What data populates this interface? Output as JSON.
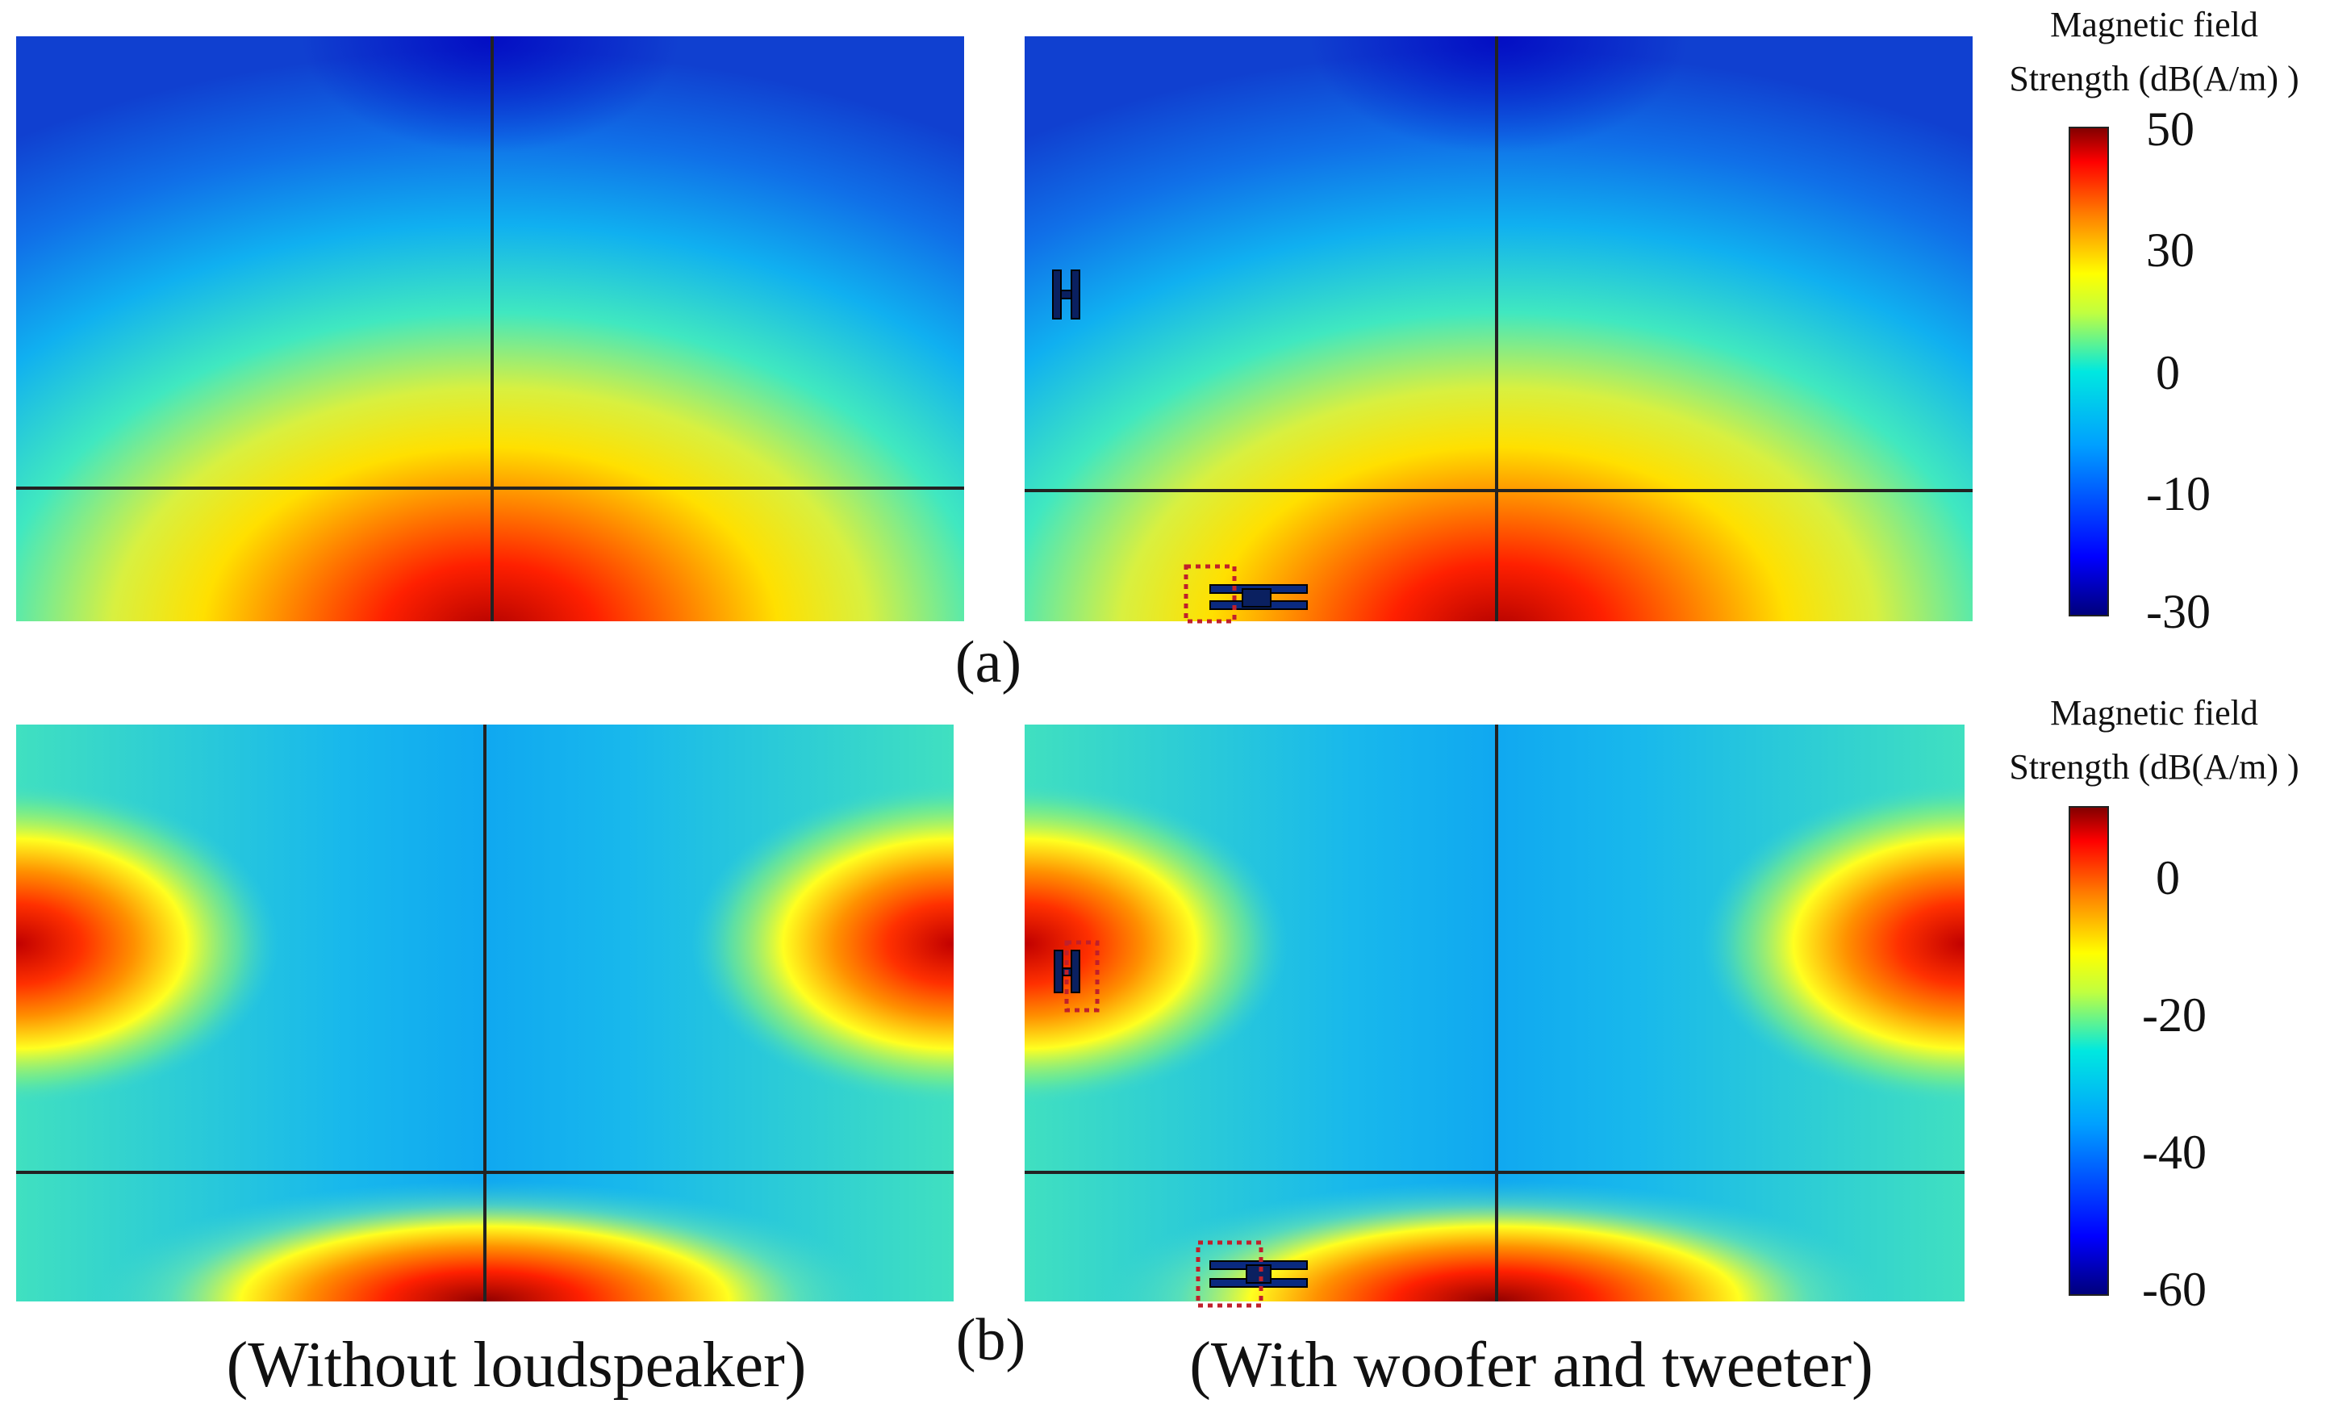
{
  "panels": {
    "a": {
      "label": "(a)",
      "colorbar": {
        "title_line1": "Magnetic  field",
        "title_line2": "Strength  (dB(A/m) )",
        "ticks": [
          "50",
          "30",
          "0",
          "-10",
          "-30"
        ]
      }
    },
    "b": {
      "label": "(b)",
      "colorbar": {
        "title_line1": "Magnetic  field",
        "title_line2": "Strength  (dB(A/m) )",
        "ticks": [
          "0",
          "-20",
          "-40",
          "-60"
        ]
      }
    }
  },
  "captions": {
    "left": "(Without loudspeaker)",
    "right": "(With woofer and tweeter)"
  },
  "colormap": [
    "#00007a",
    "#0000ff",
    "#0080ff",
    "#00e0ff",
    "#80ff80",
    "#ffff00",
    "#ff8000",
    "#ff0000",
    "#800000"
  ]
}
